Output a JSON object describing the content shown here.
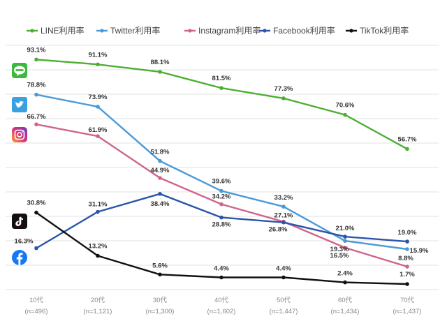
{
  "chart_data": {
    "type": "line",
    "categories": [
      "10代",
      "20代",
      "30代",
      "40代",
      "50代",
      "60代",
      "70代"
    ],
    "category_sublabels": [
      "(n=496)",
      "(n=1,121)",
      "(n=1,300)",
      "(n=1,602)",
      "(n=1,447)",
      "(n=1,434)",
      "(n=1,437)"
    ],
    "ylim": [
      0,
      100
    ],
    "grid": true,
    "legend_position": "top",
    "series": [
      {
        "name": "LINE利用率",
        "color": "#4caf30",
        "icon": "line-icon",
        "values": [
          93.1,
          91.1,
          88.1,
          81.5,
          77.3,
          70.6,
          56.7
        ],
        "labels": [
          "93.1%",
          "91.1%",
          "88.1%",
          "81.5%",
          "77.3%",
          "70.6%",
          "56.7%"
        ]
      },
      {
        "name": "Twitter利用率",
        "color": "#4a9ad8",
        "icon": "twitter-icon",
        "values": [
          78.8,
          73.9,
          51.8,
          39.6,
          33.2,
          19.3,
          15.9
        ],
        "labels": [
          "78.8%",
          "73.9%",
          "51.8%",
          "39.6%",
          "33.2%",
          "19.3%",
          "15.9%"
        ]
      },
      {
        "name": "Instagram利用率",
        "color": "#d0648c",
        "icon": "instagram-icon",
        "values": [
          66.7,
          61.9,
          44.9,
          34.2,
          27.1,
          16.5,
          8.8
        ],
        "labels": [
          "66.7%",
          "61.9%",
          "44.9%",
          "34.2%",
          "27.1%",
          "16.5%",
          "8.8%"
        ]
      },
      {
        "name": "Facebook利用率",
        "color": "#2a55a8",
        "icon": "facebook-icon",
        "values": [
          16.3,
          31.1,
          38.4,
          28.8,
          26.8,
          21.0,
          19.0
        ],
        "labels": [
          "16.3%",
          "31.1%",
          "38.4%",
          "28.8%",
          "26.8%",
          "21.0%",
          "19.0%"
        ]
      },
      {
        "name": "TikTok利用率",
        "color": "#111111",
        "icon": "tiktok-icon",
        "values": [
          30.8,
          13.2,
          5.6,
          4.4,
          4.4,
          2.4,
          1.7
        ],
        "labels": [
          "30.8%",
          "13.2%",
          "5.6%",
          "4.4%",
          "4.4%",
          "2.4%",
          "1.7%"
        ]
      }
    ]
  }
}
